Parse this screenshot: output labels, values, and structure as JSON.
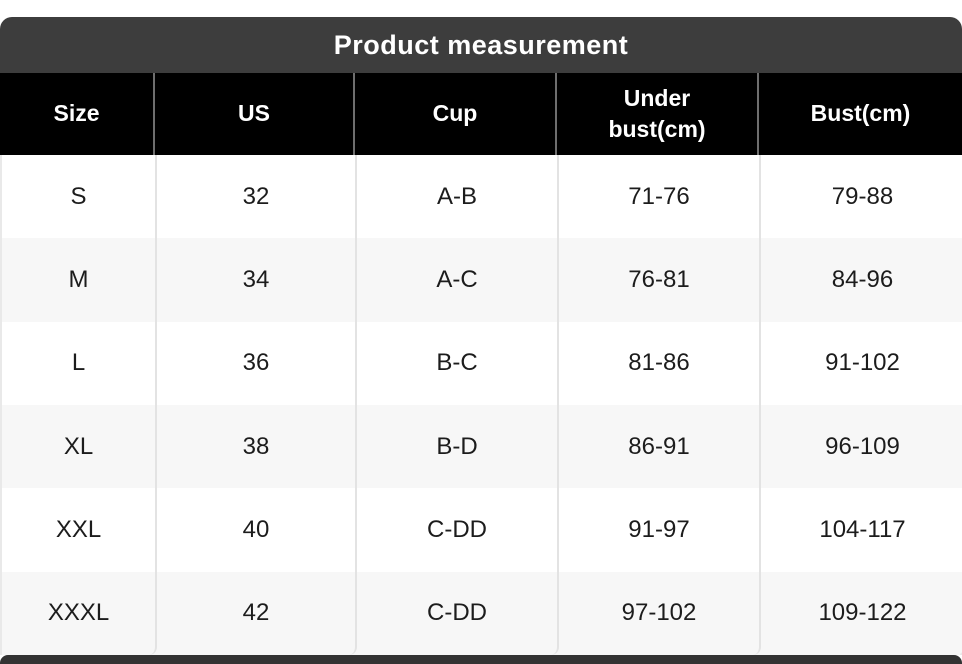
{
  "title_bar": {
    "label": "Product measurement"
  },
  "table": {
    "headers": [
      "Size",
      "US",
      "Cup",
      "Under bust(cm)",
      "Bust(cm)"
    ],
    "rows": [
      {
        "cells": [
          "S",
          "32",
          "A-B",
          "71-76",
          "79-88"
        ]
      },
      {
        "cells": [
          "M",
          "34",
          "A-C",
          "76-81",
          "84-96"
        ]
      },
      {
        "cells": [
          "L",
          "36",
          "B-C",
          "81-86",
          "91-102"
        ]
      },
      {
        "cells": [
          "XL",
          "38",
          "B-D",
          "86-91",
          "96-109"
        ]
      },
      {
        "cells": [
          "XXL",
          "40",
          "C-DD",
          "91-97",
          "104-117"
        ]
      },
      {
        "cells": [
          "XXXL",
          "42",
          "C-DD",
          "97-102",
          "109-122"
        ]
      }
    ]
  },
  "colors": {
    "title_bar_bg": "#3d3d3d",
    "header_bg": "#000000",
    "header_text": "#ffffff",
    "body_text": "#1c1c1c",
    "alt_row_bg": "#f7f7f7",
    "body_divider": "#e3e3e3",
    "header_divider": "#6e6e6e",
    "bottom_bar_bg": "#333333"
  },
  "chart_data": {
    "type": "table",
    "title": "Product measurement",
    "columns": [
      "Size",
      "US",
      "Cup",
      "Under bust(cm)",
      "Bust(cm)"
    ],
    "rows": [
      [
        "S",
        "32",
        "A-B",
        "71-76",
        "79-88"
      ],
      [
        "M",
        "34",
        "A-C",
        "76-81",
        "84-96"
      ],
      [
        "L",
        "36",
        "B-C",
        "81-86",
        "91-102"
      ],
      [
        "XL",
        "38",
        "B-D",
        "86-91",
        "96-109"
      ],
      [
        "XXL",
        "40",
        "C-DD",
        "91-97",
        "104-117"
      ],
      [
        "XXXL",
        "42",
        "C-DD",
        "97-102",
        "109-122"
      ]
    ]
  }
}
